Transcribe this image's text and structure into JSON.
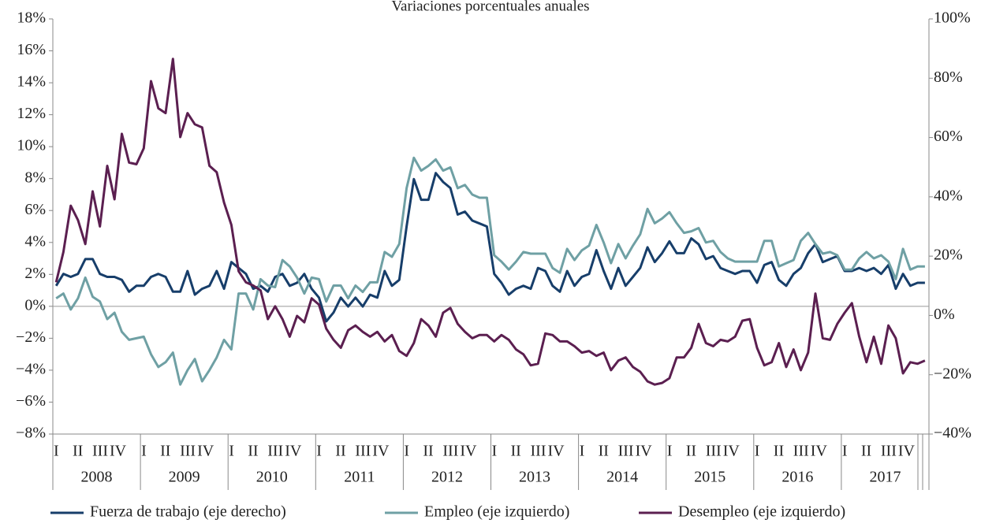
{
  "chart_data": {
    "type": "line",
    "title": "Variaciones porcentuales anuales",
    "years": [
      "2008",
      "2009",
      "2010",
      "2011",
      "2012",
      "2013",
      "2014",
      "2015",
      "2016",
      "2017"
    ],
    "quarter_labels": [
      "I",
      "II",
      "III",
      "IV"
    ],
    "ylim": [
      -8,
      18
    ],
    "yticks": [
      {
        "value": -8,
        "label": "−8%"
      },
      {
        "value": -6,
        "label": "−6%"
      },
      {
        "value": -4,
        "label": "−4%"
      },
      {
        "value": -2,
        "label": "−2%"
      },
      {
        "value": 0,
        "label": "0%"
      },
      {
        "value": 2,
        "label": "2%"
      },
      {
        "value": 4,
        "label": "4%"
      },
      {
        "value": 6,
        "label": "6%"
      },
      {
        "value": 8,
        "label": "8%"
      },
      {
        "value": 10,
        "label": "10%"
      },
      {
        "value": 12,
        "label": "12%"
      },
      {
        "value": 14,
        "label": "14%"
      },
      {
        "value": 16,
        "label": "16%"
      },
      {
        "value": 18,
        "label": "18%"
      }
    ],
    "y2lim": [
      -40,
      100
    ],
    "y2ticks": [
      {
        "value": -40,
        "label": "−40%"
      },
      {
        "value": -20,
        "label": "−20%"
      },
      {
        "value": 0,
        "label": "0%"
      },
      {
        "value": 20,
        "label": "20%"
      },
      {
        "value": 40,
        "label": "40%"
      },
      {
        "value": 60,
        "label": "60%"
      },
      {
        "value": 80,
        "label": "80%"
      },
      {
        "value": 100,
        "label": "100%"
      }
    ],
    "series": [
      {
        "name": "Fuerza de trabajo (eje derecho)",
        "color": "#173e6a",
        "axis": "y2",
        "values": [
          10,
          14,
          13,
          14,
          19,
          19,
          14,
          13,
          13,
          12,
          8,
          10,
          10,
          13,
          14,
          13,
          8,
          8,
          15,
          7,
          9,
          10,
          15,
          9,
          18,
          16,
          14,
          9,
          10,
          8,
          13,
          14,
          10,
          11,
          14,
          9,
          6,
          -2,
          1,
          6,
          3,
          6,
          3,
          7,
          6,
          15,
          10,
          12,
          30,
          46,
          39,
          39,
          48,
          45,
          43,
          34,
          35,
          32,
          31,
          30,
          14,
          11,
          7,
          9,
          10,
          9,
          16,
          15,
          10,
          8,
          15,
          10,
          13,
          14,
          22,
          15,
          9,
          16,
          10,
          13,
          16,
          23,
          18,
          21,
          25,
          21,
          21,
          26,
          24,
          19,
          20,
          16,
          15,
          14,
          15,
          15,
          11,
          17,
          18,
          12,
          10,
          14,
          16,
          21,
          24,
          18,
          19,
          20,
          15,
          15,
          16,
          15,
          16,
          14,
          17,
          9,
          14,
          10,
          11,
          11
        ]
      },
      {
        "name": "Empleo (eje izquierdo)",
        "color": "#6fa0a4",
        "values": [
          0.5,
          0.8,
          -0.2,
          0.5,
          1.8,
          0.6,
          0.3,
          -0.8,
          -0.4,
          -1.6,
          -2.1,
          -2.0,
          -1.9,
          -3.0,
          -3.8,
          -3.5,
          -2.9,
          -4.9,
          -4.0,
          -3.3,
          -4.7,
          -4.0,
          -3.2,
          -2.1,
          -2.7,
          0.8,
          0.8,
          -0.2,
          1.7,
          1.3,
          1.2,
          2.9,
          2.5,
          1.8,
          0.8,
          1.8,
          1.7,
          0.3,
          1.3,
          1.3,
          0.5,
          1.3,
          0.9,
          1.5,
          1.5,
          3.4,
          3.1,
          3.9,
          7.4,
          9.3,
          8.5,
          8.8,
          9.2,
          8.5,
          8.7,
          7.4,
          7.6,
          7.0,
          6.8,
          6.8,
          3.2,
          2.8,
          2.3,
          2.8,
          3.4,
          3.3,
          3.3,
          3.3,
          2.4,
          2.1,
          3.6,
          2.9,
          3.5,
          3.8,
          5.1,
          4.0,
          2.7,
          3.9,
          3.0,
          3.8,
          4.5,
          6.1,
          5.2,
          5.5,
          5.9,
          5.2,
          4.6,
          4.7,
          4.9,
          4.0,
          4.1,
          3.4,
          3.0,
          2.8,
          2.8,
          2.8,
          2.8,
          4.1,
          4.1,
          2.5,
          2.7,
          2.9,
          4.1,
          4.6,
          3.9,
          3.3,
          3.4,
          3.2,
          2.3,
          2.3,
          3.0,
          3.4,
          3.0,
          3.2,
          2.8,
          1.7,
          3.6,
          2.3,
          2.5,
          2.5
        ]
      },
      {
        "name": "Desempleo (eje izquierdo)",
        "color": "#5b1f50",
        "values": [
          1.5,
          3.4,
          6.3,
          5.4,
          3.9,
          7.2,
          5.0,
          8.8,
          6.7,
          10.8,
          9.0,
          8.9,
          9.9,
          14.1,
          12.4,
          12.1,
          15.5,
          10.6,
          12.1,
          11.4,
          11.2,
          8.8,
          8.4,
          6.5,
          5.1,
          2.2,
          1.5,
          1.3,
          1.0,
          -0.8,
          0.0,
          -0.8,
          -1.9,
          -0.6,
          -1.0,
          0.5,
          0.1,
          -1.4,
          -2.1,
          -2.6,
          -1.5,
          -1.2,
          -1.6,
          -1.9,
          -1.6,
          -2.2,
          -1.8,
          -2.8,
          -3.1,
          -2.3,
          -0.8,
          -1.2,
          -1.9,
          -0.4,
          -0.1,
          -1.1,
          -1.6,
          -2.0,
          -1.8,
          -1.8,
          -2.2,
          -1.8,
          -2.1,
          -2.7,
          -3.0,
          -3.7,
          -3.6,
          -1.7,
          -1.8,
          -2.2,
          -2.2,
          -2.5,
          -2.9,
          -2.8,
          -3.1,
          -2.9,
          -4.0,
          -3.4,
          -3.2,
          -3.8,
          -4.1,
          -4.7,
          -4.9,
          -4.8,
          -4.5,
          -3.2,
          -3.2,
          -2.6,
          -1.1,
          -2.3,
          -2.5,
          -2.1,
          -2.2,
          -1.9,
          -0.9,
          -0.8,
          -2.6,
          -3.7,
          -3.5,
          -2.3,
          -3.8,
          -2.7,
          -4.0,
          -2.9,
          0.8,
          -2.0,
          -2.1,
          -1.1,
          -0.4,
          0.2,
          -1.9,
          -3.5,
          -1.9,
          -3.6,
          -1.2,
          -2.0,
          -4.2,
          -3.5,
          -3.6,
          -3.4
        ]
      }
    ]
  }
}
